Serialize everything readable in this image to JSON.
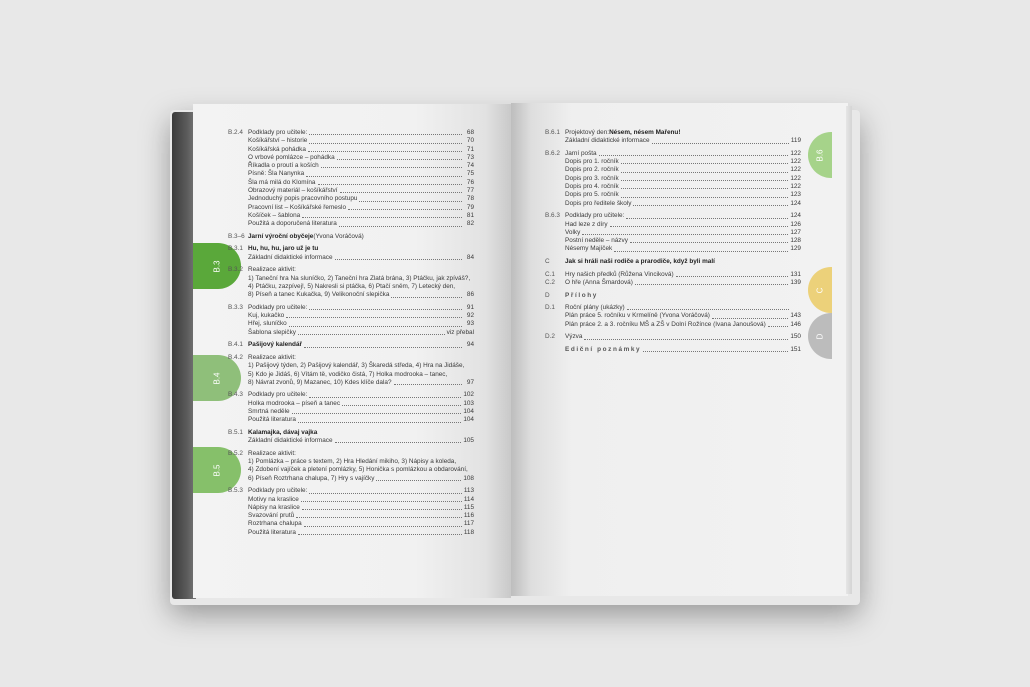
{
  "colors": {
    "tab_b3": "#5aa83a",
    "tab_b4": "#8fbf7a",
    "tab_b5": "#86c06a",
    "tab_b6": "#a6d38a",
    "tab_c": "#ecd17a",
    "tab_d": "#bcbcbc"
  },
  "tabs": {
    "left": [
      "B.3",
      "B.4",
      "B.5"
    ],
    "right": [
      "B.6",
      "C",
      "D"
    ]
  },
  "left_page": {
    "groups": [
      {
        "rows": [
          {
            "code": "B.2.4",
            "text": "Podklady pro učitele:",
            "page": "68"
          },
          {
            "text": "Košíkářství – historie",
            "page": "70"
          },
          {
            "text": "Košíkářská pohádka",
            "page": "71"
          },
          {
            "text": "O vrbové pomlázce – pohádka",
            "page": "73"
          },
          {
            "text": "Říkadla o proutí a koších",
            "page": "74"
          },
          {
            "text": "Písně: Šla Nanynka",
            "page": "75"
          },
          {
            "text": "Šla má milá do Klomína",
            "page": "76"
          },
          {
            "text": "Obrazový materiál – košíkářství",
            "page": "77"
          },
          {
            "text": "Jednoduchý popis pracovního postupu",
            "page": "78"
          },
          {
            "text": "Pracovní list – Košíkářské řemeslo",
            "page": "79"
          },
          {
            "text": "Košíček – šablona",
            "page": "81"
          },
          {
            "text": "Použitá a doporučená literatura",
            "page": "82"
          }
        ]
      },
      {
        "rows": [
          {
            "code": "B.3–6",
            "text": "Jarní výroční obyčeje",
            "extra": " (Yvona Voráčová)",
            "bold": true
          }
        ]
      },
      {
        "rows": [
          {
            "code": "B.3.1",
            "text": "Hu, hu, hu, jaro už je tu",
            "bold": true
          },
          {
            "text": "Základní didaktické informace",
            "page": "84"
          }
        ]
      },
      {
        "rows": [
          {
            "code": "B.3.2",
            "text": "Realizace aktivit:"
          },
          {
            "text": "1) Taneční hra Na sluníčko, 2) Taneční hra Zlatá brána, 3) Ptáčku, jak zpíváš?,",
            "nolead": true
          },
          {
            "text": "4) Ptáčku, zazpívej!, 5) Nakresli si ptáčka, 6) Ptačí sněm, 7) Letecký den,",
            "nolead": true
          },
          {
            "text": "8) Píseň a tanec Kukačka, 9) Velikonoční slepička",
            "page": "86"
          }
        ]
      },
      {
        "rows": [
          {
            "code": "B.3.3",
            "text": "Podklady pro učitele:",
            "page": "91"
          },
          {
            "text": "Kuj, kukačko",
            "page": "92"
          },
          {
            "text": "Hřej, sluníčko",
            "page": "93"
          },
          {
            "text": "Šablona slepičky",
            "page": "viz přebal"
          }
        ]
      },
      {
        "rows": [
          {
            "code": "B.4.1",
            "text": "Pašijový kalendář",
            "page": "94",
            "bold": true
          }
        ]
      },
      {
        "rows": [
          {
            "code": "B.4.2",
            "text": "Realizace aktivit:"
          },
          {
            "text": "1) Pašijový týden, 2) Pašijový kalendář, 3) Škaredá středa, 4) Hra na Jidáše,",
            "nolead": true
          },
          {
            "text": "5) Kdo je Jidáš, 6) Vítám tě, vodičko čistá, 7) Holka modrooka – tanec,",
            "nolead": true
          },
          {
            "text": "8) Návrat zvonů, 9) Mazanec, 10) Kdes klíče dala?",
            "page": "97"
          }
        ]
      },
      {
        "rows": [
          {
            "code": "B.4.3",
            "text": "Podklady pro učitele:",
            "page": "102"
          },
          {
            "text": "Holka modrooka – píseň a tanec",
            "page": "103"
          },
          {
            "text": "Smrtná neděle",
            "page": "104"
          },
          {
            "text": "Použitá literatura",
            "page": "104"
          }
        ]
      },
      {
        "rows": [
          {
            "code": "B.5.1",
            "text": "Kalamajka, dávaj vajka",
            "bold": true
          },
          {
            "text": "Základní didaktické informace",
            "page": "105"
          }
        ]
      },
      {
        "rows": [
          {
            "code": "B.5.2",
            "text": "Realizace aktivit:"
          },
          {
            "text": "1) Pomlázka – práce s textem, 2) Hra Hledání mikiho, 3) Nápisy a koleda,",
            "nolead": true
          },
          {
            "text": "4) Zdobení vajíček a pletení pomlázky, 5) Honička s pomlázkou a obdarování,",
            "nolead": true
          },
          {
            "text": "6) Píseň Roztrhana chalupa, 7) Hry s vajíčky",
            "page": "108"
          }
        ]
      },
      {
        "rows": [
          {
            "code": "B.5.3",
            "text": "Podklady pro učitele:",
            "page": "113"
          },
          {
            "text": "Motivy na kraslice",
            "page": "114"
          },
          {
            "text": "Nápisy na kraslice",
            "page": "115"
          },
          {
            "text": "Svazování prutů",
            "page": "116"
          },
          {
            "text": "Roztrhana chalupa",
            "page": "117"
          },
          {
            "text": "Použitá literatura",
            "page": "118"
          }
        ]
      }
    ]
  },
  "right_page": {
    "groups": [
      {
        "rows": [
          {
            "code": "B.6.1",
            "text": "Projektový den: ",
            "strong": "Nésem, nésem Mařenu!"
          },
          {
            "text": "Základní didaktické informace",
            "page": "119"
          }
        ]
      },
      {
        "rows": [
          {
            "code": "B.6.2",
            "text": "Jarní pošta",
            "page": "122"
          },
          {
            "text": "Dopis pro 1. ročník",
            "page": "122"
          },
          {
            "text": "Dopis pro 2. ročník",
            "page": "122"
          },
          {
            "text": "Dopis pro 3. ročník",
            "page": "122"
          },
          {
            "text": "Dopis pro 4. ročník",
            "page": "122"
          },
          {
            "text": "Dopis pro 5. ročník",
            "page": "123"
          },
          {
            "text": "Dopis pro ředitele školy",
            "page": "124"
          }
        ]
      },
      {
        "rows": [
          {
            "code": "B.6.3",
            "text": "Podklady pro učitele:",
            "page": "124"
          },
          {
            "text": "Had leze z díry",
            "page": "126"
          },
          {
            "text": "Volky",
            "page": "127"
          },
          {
            "text": "Postní neděle – názvy",
            "page": "128"
          },
          {
            "text": "Nésemy Majíček",
            "page": "129"
          }
        ]
      },
      {
        "rows": [
          {
            "code": "C",
            "text": "Jak si hráli naši rodiče a prarodiče, když byli malí",
            "bold": true
          }
        ]
      },
      {
        "rows": [
          {
            "code": "C.1",
            "text": "Hry našich předků (Růžena Vinciková)",
            "page": "131"
          },
          {
            "code": "C.2",
            "text": "O hře (Anna Šmardová)",
            "page": "139"
          }
        ]
      },
      {
        "rows": [
          {
            "code": "D",
            "text": "Přílohy",
            "spaced": true
          }
        ]
      },
      {
        "rows": [
          {
            "code": "D.1",
            "text": "Roční plány (ukázky)",
            "page": ""
          },
          {
            "text": "Plán práce 5. ročníku v Krmelíně (Yvona Voráčová)",
            "page": "143"
          },
          {
            "text": "Plán práce 2. a 3. ročníku MŠ a ZŠ v Dolní Rožínce (Ivana Janoušová)",
            "page": "146"
          }
        ]
      },
      {
        "rows": [
          {
            "code": "D.2",
            "text": "Výzva",
            "page": "150"
          }
        ]
      },
      {
        "rows": [
          {
            "text": "Ediční poznámky",
            "page": "151",
            "spaced": true
          }
        ]
      }
    ]
  }
}
